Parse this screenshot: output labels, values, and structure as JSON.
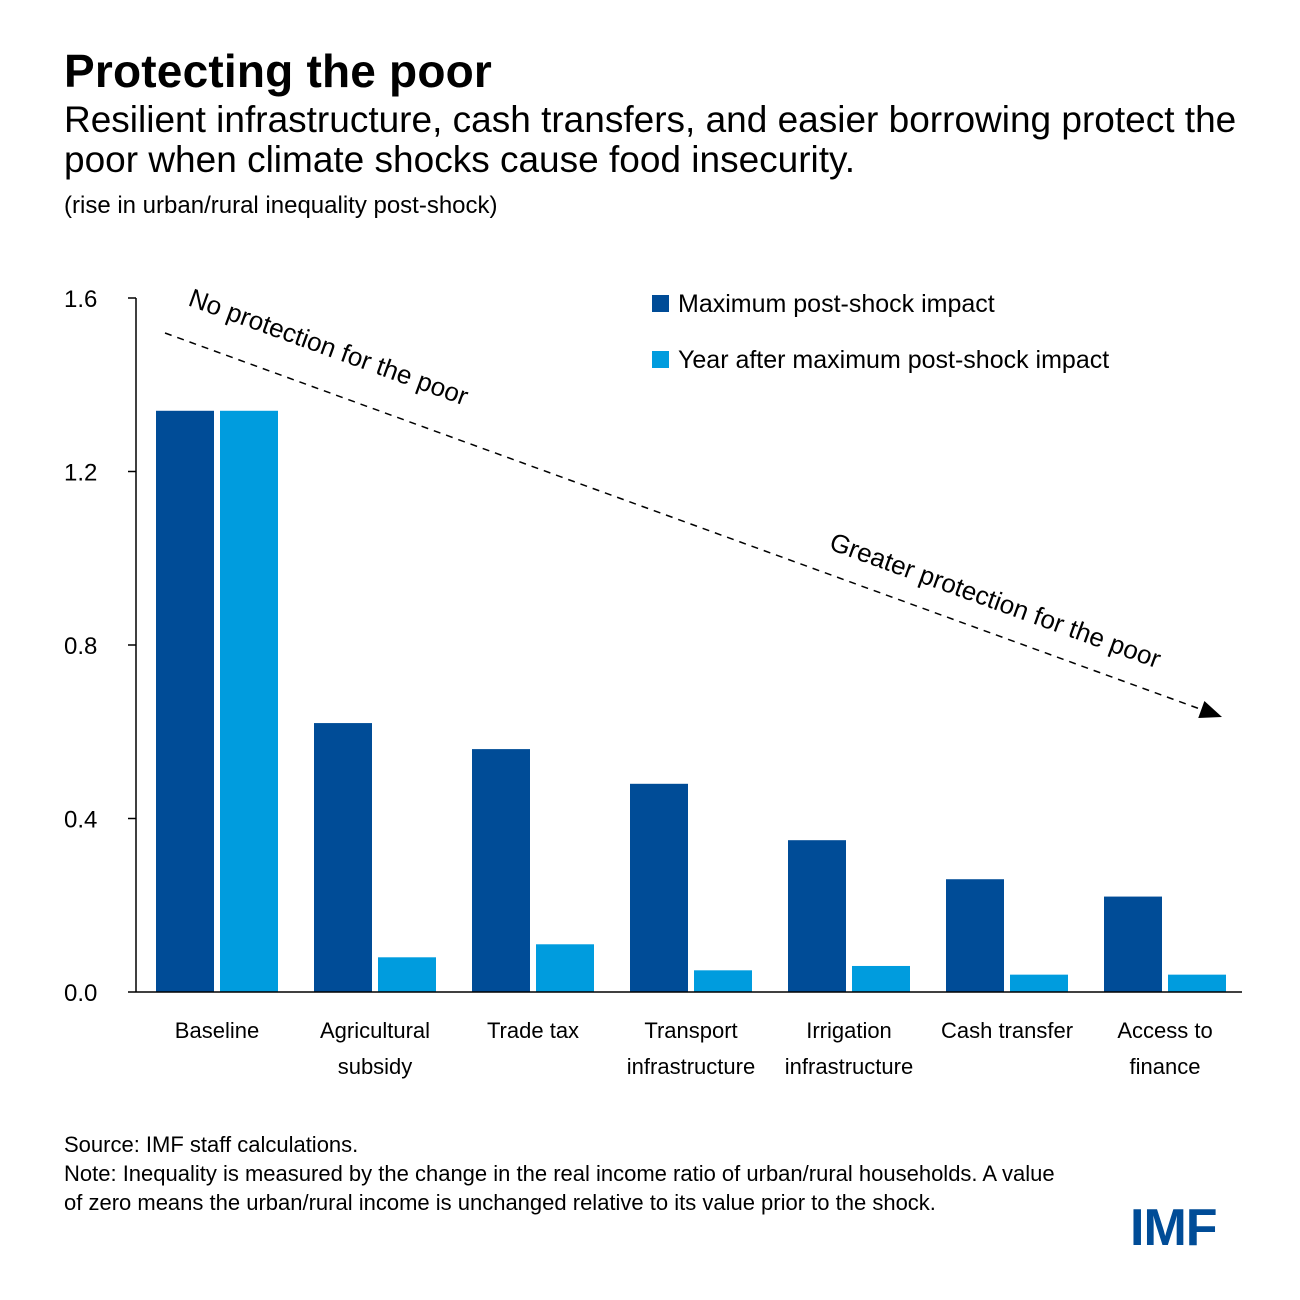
{
  "header": {
    "title": "Protecting the poor",
    "subtitle": "Resilient infrastructure, cash transfers, and easier borrowing protect the poor when climate shocks cause food insecurity.",
    "unit": "(rise in urban/rural inequality post-shock)"
  },
  "colors": {
    "series1": "#004C97",
    "series2": "#009CDE",
    "logo": "#004C97"
  },
  "chart_data": {
    "type": "bar",
    "title": "Protecting the poor",
    "ylabel": "(rise in urban/rural inequality post-shock)",
    "xlabel": "",
    "ylim": [
      0,
      1.6
    ],
    "yticks": [
      "0.0",
      "0.4",
      "0.8",
      "1.2",
      "1.6"
    ],
    "ytick_values": [
      0,
      0.4,
      0.8,
      1.2,
      1.6
    ],
    "categories": [
      [
        "Baseline"
      ],
      [
        "Agricultural",
        "subsidy"
      ],
      [
        "Trade tax"
      ],
      [
        "Transport",
        "infrastructure"
      ],
      [
        "Irrigation",
        "infrastructure"
      ],
      [
        "Cash transfer"
      ],
      [
        "Access to",
        "finance"
      ]
    ],
    "series": [
      {
        "name": "Maximum post-shock impact",
        "values": [
          1.34,
          0.62,
          0.56,
          0.48,
          0.35,
          0.26,
          0.22
        ]
      },
      {
        "name": "Year after maximum post-shock impact",
        "values": [
          1.34,
          0.08,
          0.11,
          0.05,
          0.06,
          0.04,
          0.04
        ]
      }
    ],
    "legend_position": "top-right",
    "annotations": {
      "start": "No protection for the poor",
      "end": "Greater protection for the poor"
    }
  },
  "footer": {
    "source": "Source: IMF staff calculations.",
    "note": "Note: Inequality is measured by the change in the real income ratio of urban/rural households. A value of zero means the urban/rural income is unchanged relative to its value prior to the shock.",
    "logo": "IMF"
  }
}
